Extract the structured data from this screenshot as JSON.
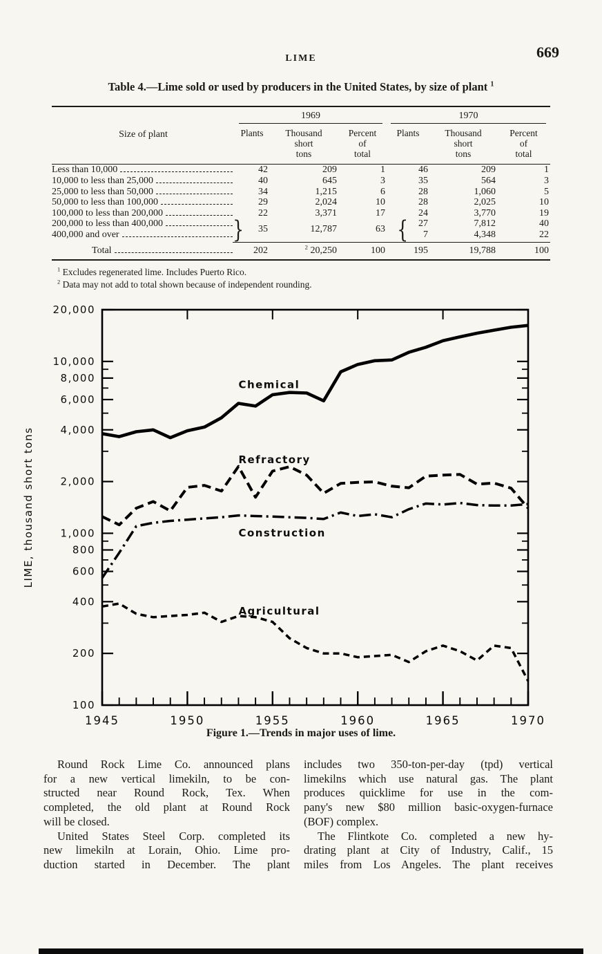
{
  "colors": {
    "paper": "#f8f6f1",
    "ink": "#1c1a17",
    "line": "#000000"
  },
  "page": {
    "running_title": "LIME",
    "page_number": "669"
  },
  "table": {
    "title": "Table 4.—Lime sold or used by producers in the United States, by size of plant",
    "title_footnote_marker": "1",
    "size_col_header": "Size of plant",
    "year_groups": [
      "1969",
      "1970"
    ],
    "sub_headers": [
      "Plants",
      "Thousand\nshort\ntons",
      "Percent\nof\ntotal",
      "Plants",
      "Thousand\nshort\ntons",
      "Percent\nof\ntotal"
    ],
    "rows": [
      {
        "label": "Less than 10,000",
        "values": [
          "42",
          "209",
          "1",
          "46",
          "209",
          "1"
        ]
      },
      {
        "label": "10,000 to less than 25,000",
        "values": [
          "40",
          "645",
          "3",
          "35",
          "564",
          "3"
        ]
      },
      {
        "label": "25,000 to less than 50,000",
        "values": [
          "34",
          "1,215",
          "6",
          "28",
          "1,060",
          "5"
        ]
      },
      {
        "label": "50,000 to less than 100,000",
        "values": [
          "29",
          "2,024",
          "10",
          "28",
          "2,025",
          "10"
        ]
      },
      {
        "label": "100,000 to less than 200,000",
        "values": [
          "22",
          "3,371",
          "17",
          "24",
          "3,770",
          "19"
        ]
      }
    ],
    "braced_rows": {
      "labels": [
        "200,000 to less than 400,000",
        "400,000 and over"
      ],
      "v1969": {
        "plants": "35",
        "tons": "12,787",
        "percent": "63"
      },
      "v1970": [
        {
          "plants": "27",
          "tons": "7,812",
          "percent": "40"
        },
        {
          "plants": "7",
          "tons": "4,348",
          "percent": "22"
        }
      ]
    },
    "total_row": {
      "label": "Total",
      "plants_1969": "202",
      "tons_1969_marker": "2",
      "tons_1969": "20,250",
      "percent_1969": "100",
      "plants_1970": "195",
      "tons_1970": "19,788",
      "percent_1970": "100"
    },
    "footnotes": [
      {
        "marker": "1",
        "text": "Excludes regenerated lime. Includes Puerto Rico."
      },
      {
        "marker": "2",
        "text": "Data may not add to total shown because of independent rounding."
      }
    ]
  },
  "chart_data": {
    "type": "line",
    "title": "Figure 1.—Trends in major uses of lime.",
    "ylabel": "LIME, thousand short tons",
    "yscale": "log",
    "ylim": [
      100,
      20000
    ],
    "xlim": [
      1945,
      1970
    ],
    "x": [
      1945,
      1946,
      1947,
      1948,
      1949,
      1950,
      1951,
      1952,
      1953,
      1954,
      1955,
      1956,
      1957,
      1958,
      1959,
      1960,
      1961,
      1962,
      1963,
      1964,
      1965,
      1966,
      1967,
      1968,
      1969,
      1970
    ],
    "xticks_labeled": [
      1945,
      1950,
      1955,
      1960,
      1965,
      1970
    ],
    "xticks_top": [
      1950,
      1955,
      1960,
      1965
    ],
    "yticks_labeled": [
      20000,
      10000,
      8000,
      6000,
      4000,
      2000,
      1000,
      800,
      600,
      400,
      200,
      100
    ],
    "yticks_minor": [
      9000,
      7000,
      5000,
      3000,
      900,
      700,
      500,
      300
    ],
    "grid": false,
    "legend": "inline-labels",
    "series": [
      {
        "name": "Chemical",
        "style": "solid",
        "values": [
          3800,
          3650,
          3900,
          4000,
          3600,
          3950,
          4150,
          4700,
          5700,
          5500,
          6400,
          6600,
          6550,
          5900,
          8700,
          9600,
          10100,
          10200,
          11300,
          12100,
          13200,
          13900,
          14600,
          15200,
          15800,
          16200
        ]
      },
      {
        "name": "Refractory",
        "style": "dashed",
        "values": [
          1250,
          1120,
          1400,
          1530,
          1350,
          1850,
          1900,
          1760,
          2450,
          1620,
          2300,
          2440,
          2180,
          1710,
          1950,
          1980,
          1990,
          1880,
          1840,
          2150,
          2180,
          2200,
          1930,
          1960,
          1830,
          1400
        ]
      },
      {
        "name": "Construction",
        "style": "dash-dot",
        "values": [
          550,
          770,
          1100,
          1150,
          1180,
          1200,
          1220,
          1240,
          1270,
          1260,
          1250,
          1240,
          1230,
          1210,
          1320,
          1260,
          1290,
          1240,
          1380,
          1490,
          1470,
          1500,
          1460,
          1450,
          1450,
          1480
        ]
      },
      {
        "name": "Agricultural",
        "style": "short-dash",
        "values": [
          375,
          390,
          340,
          325,
          330,
          335,
          345,
          305,
          330,
          325,
          305,
          245,
          215,
          200,
          200,
          190,
          193,
          196,
          178,
          206,
          222,
          206,
          182,
          222,
          215,
          138
        ]
      }
    ],
    "line_labels": [
      {
        "text": "Chemical",
        "year": 1953.0,
        "value": 7000
      },
      {
        "text": "Refractory",
        "year": 1953.0,
        "value": 2560
      },
      {
        "text": "Construction",
        "year": 1953.0,
        "value": 960
      },
      {
        "text": "Agricultural",
        "year": 1953.0,
        "value": 337
      }
    ]
  },
  "figure_caption": "Figure 1.—Trends in major uses of lime.",
  "body": {
    "left_column": [
      {
        "indent": true,
        "justify_last": false,
        "lines": [
          "Round Rock Lime Co. announced plans",
          "for a new vertical limekiln, to be con-",
          "structed near Round Rock, Tex. When",
          "completed, the old plant at Round Rock",
          "will be closed."
        ]
      },
      {
        "indent": true,
        "justify_last": true,
        "lines": [
          "United States Steel Corp. completed its",
          "new limekiln at Lorain, Ohio. Lime pro-",
          "duction started in December. The plant"
        ]
      }
    ],
    "right_column": [
      {
        "indent": false,
        "justify_last": false,
        "lines": [
          "includes two 350-ton-per-day (tpd) vertical",
          "limekilns which use natural gas. The plant",
          "produces quicklime for use in the com-",
          "pany's new $80 million basic-oxygen-furnace",
          "(BOF) complex."
        ]
      },
      {
        "indent": true,
        "justify_last": true,
        "lines": [
          "The Flintkote Co. completed a new hy-",
          "drating plant at City of Industry, Calif., 15",
          "miles from Los Angeles. The plant receives"
        ]
      }
    ]
  }
}
